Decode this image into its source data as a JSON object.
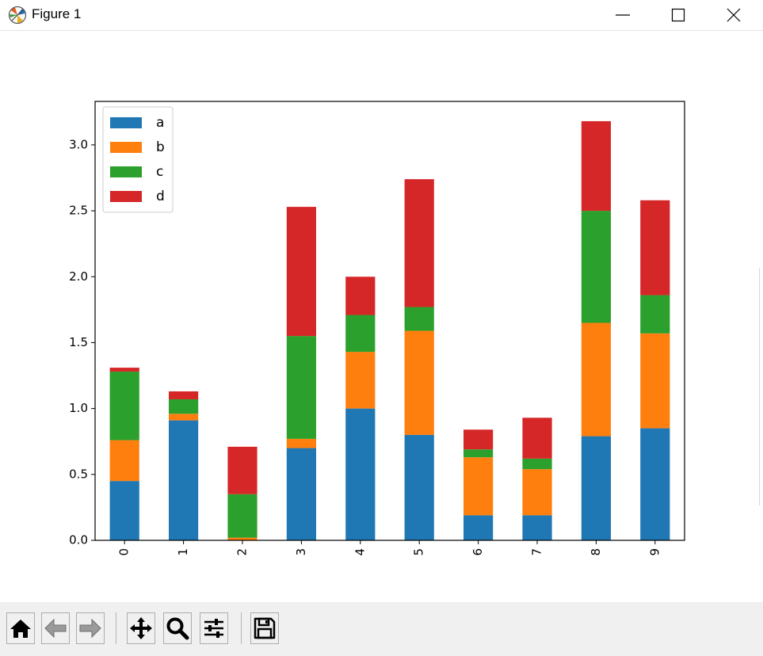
{
  "window": {
    "title": "Figure 1"
  },
  "toolbar": {
    "buttons": [
      "home",
      "back",
      "forward",
      "pan",
      "zoom",
      "configure-subplots",
      "save"
    ]
  },
  "chart_data": {
    "type": "bar",
    "stacked": true,
    "categories": [
      "0",
      "1",
      "2",
      "3",
      "4",
      "5",
      "6",
      "7",
      "8",
      "9"
    ],
    "series": [
      {
        "name": "a",
        "color": "#1f77b4",
        "values": [
          0.45,
          0.91,
          0.0,
          0.7,
          1.0,
          0.8,
          0.19,
          0.19,
          0.79,
          0.85
        ]
      },
      {
        "name": "b",
        "color": "#ff7f0e",
        "values": [
          0.31,
          0.05,
          0.02,
          0.07,
          0.43,
          0.79,
          0.44,
          0.35,
          0.86,
          0.72
        ]
      },
      {
        "name": "c",
        "color": "#2ca02c",
        "values": [
          0.52,
          0.11,
          0.33,
          0.78,
          0.28,
          0.18,
          0.06,
          0.08,
          0.85,
          0.29
        ]
      },
      {
        "name": "d",
        "color": "#d62728",
        "values": [
          0.03,
          0.06,
          0.36,
          0.98,
          0.29,
          0.97,
          0.15,
          0.31,
          0.68,
          0.72
        ]
      }
    ],
    "ylim": [
      0,
      3.33
    ],
    "yticks": [
      "0.0",
      "0.5",
      "1.0",
      "1.5",
      "2.0",
      "2.5",
      "3.0"
    ],
    "title": "",
    "xlabel": "",
    "ylabel": "",
    "legend_position": "upper-left",
    "grid": false
  }
}
